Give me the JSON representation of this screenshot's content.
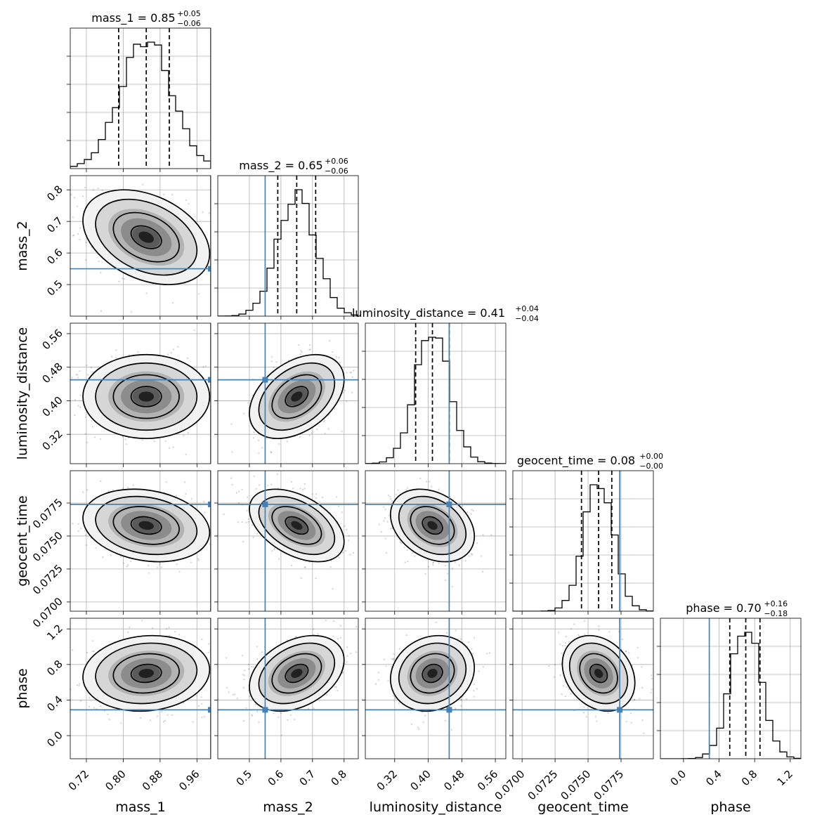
{
  "chart_data": {
    "type": "corner",
    "parameters": [
      "mass_1",
      "mass_2",
      "luminosity_distance",
      "geocent_time",
      "phase"
    ],
    "axis_labels": {
      "mass_1": "mass_1",
      "mass_2": "mass_2",
      "luminosity_distance": "luminosity_distance",
      "geocent_time": "geocent_time",
      "phase": "phase"
    },
    "titles": [
      {
        "parameter": "mass_1",
        "text": "mass_1 = 0.85",
        "plus": "+0.05",
        "minus": "−0.06"
      },
      {
        "parameter": "mass_2",
        "text": "mass_2 = 0.65",
        "plus": "+0.06",
        "minus": "−0.06"
      },
      {
        "parameter": "luminosity_distance",
        "text": "luminosity_distance = 0.41",
        "plus": "+0.04",
        "minus": "−0.04"
      },
      {
        "parameter": "geocent_time",
        "text": "geocent_time = 0.08",
        "plus": "+0.00",
        "minus": "−0.00"
      },
      {
        "parameter": "phase",
        "text": "phase = 0.70",
        "plus": "+0.16",
        "minus": "−0.18"
      }
    ],
    "ranges": {
      "mass_1": [
        0.685,
        0.99
      ],
      "mass_2": [
        0.4,
        0.845
      ],
      "luminosity_distance": [
        0.25,
        0.585
      ],
      "geocent_time": [
        0.0693,
        0.07995
      ],
      "phase": [
        -0.26,
        1.32
      ]
    },
    "ticks": {
      "mass_1": {
        "values": [
          0.72,
          0.8,
          0.88,
          0.96
        ],
        "labels": [
          "0.72",
          "0.80",
          "0.88",
          "0.96"
        ]
      },
      "mass_2": {
        "values": [
          0.5,
          0.6,
          0.7,
          0.8
        ],
        "labels": [
          "0.5",
          "0.6",
          "0.7",
          "0.8"
        ]
      },
      "luminosity_distance": {
        "values": [
          0.32,
          0.4,
          0.48,
          0.56
        ],
        "labels": [
          "0.32",
          "0.40",
          "0.48",
          "0.56"
        ]
      },
      "geocent_time": {
        "values": [
          0.07,
          0.0725,
          0.075,
          0.0775
        ],
        "labels": [
          "0.0700",
          "0.0725",
          "0.0750",
          "0.0775"
        ]
      },
      "phase": {
        "values": [
          0.0,
          0.4,
          0.8,
          1.2
        ],
        "labels": [
          "0.0",
          "0.4",
          "0.8",
          "1.2"
        ]
      }
    },
    "medians": [
      0.85,
      0.65,
      0.41,
      0.0758,
      0.7
    ],
    "quantiles": [
      [
        0.79,
        0.85,
        0.9
      ],
      [
        0.59,
        0.65,
        0.71
      ],
      [
        0.37,
        0.41,
        0.45
      ],
      [
        0.0745,
        0.0758,
        0.0768
      ],
      [
        0.52,
        0.7,
        0.86
      ]
    ],
    "truths": [
      0.99,
      0.55,
      0.45,
      0.0774,
      0.29
    ],
    "std": [
      0.055,
      0.06,
      0.04,
      0.0011,
      0.17
    ],
    "correlations": {
      "1-0": -0.35,
      "2-0": 0.0,
      "2-1": 0.4,
      "3-0": -0.2,
      "3-1": -0.45,
      "3-2": -0.3,
      "4-0": 0.1,
      "4-1": 0.35,
      "4-2": 0.15,
      "4-3": -0.25
    },
    "colors": {
      "truth": "#4682b4",
      "contour": "#000000",
      "grid": "#b0b0b0"
    }
  }
}
